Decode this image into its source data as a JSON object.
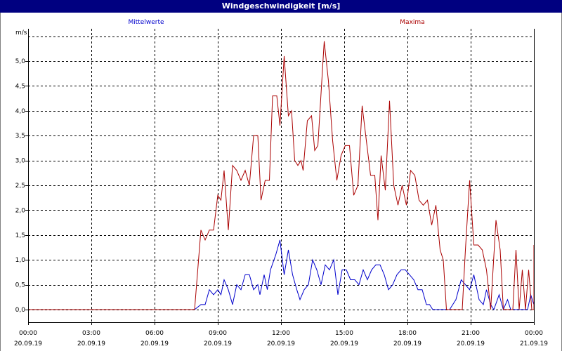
{
  "window": {
    "title": "Windgeschwindigkeit [m/s]"
  },
  "chart_data": {
    "type": "line",
    "title": "Windgeschwindigkeit [m/s]",
    "ylabel": "m/s",
    "xlabel": "",
    "xlim": [
      "2019-09-20 00:00",
      "2019-09-21 00:00"
    ],
    "ylim": [
      -0.25,
      5.5
    ],
    "grid": true,
    "colors": {
      "mittelwerte": "#0000cc",
      "maxima": "#aa0000"
    },
    "y_ticks": [
      {
        "value": 0,
        "label": "0,0"
      },
      {
        "value": 0.5,
        "label": "0,5"
      },
      {
        "value": 1,
        "label": "1,0"
      },
      {
        "value": 1.5,
        "label": "1,5"
      },
      {
        "value": 2,
        "label": "2,0"
      },
      {
        "value": 2.5,
        "label": "2,5"
      },
      {
        "value": 3,
        "label": "3,0"
      },
      {
        "value": 3.5,
        "label": "3,5"
      },
      {
        "value": 4,
        "label": "4,0"
      },
      {
        "value": 4.5,
        "label": "4,5"
      },
      {
        "value": 5,
        "label": "5,0"
      }
    ],
    "x_ticks": [
      {
        "hour": 0,
        "time": "00:00",
        "date": "20.09.19"
      },
      {
        "hour": 3,
        "time": "03:00",
        "date": "20.09.19"
      },
      {
        "hour": 6,
        "time": "06:00",
        "date": "20.09.19"
      },
      {
        "hour": 9,
        "time": "09:00",
        "date": "20.09.19"
      },
      {
        "hour": 12,
        "time": "12:00",
        "date": "20.09.19"
      },
      {
        "hour": 15,
        "time": "15:00",
        "date": "20.09.19"
      },
      {
        "hour": 18,
        "time": "18:00",
        "date": "20.09.19"
      },
      {
        "hour": 21,
        "time": "21:00",
        "date": "20.09.19"
      },
      {
        "hour": 24,
        "time": "00:00",
        "date": "21.09.19"
      }
    ],
    "series": [
      {
        "name": "Mittelwerte",
        "points": [
          [
            0,
            0
          ],
          [
            7.9,
            0
          ],
          [
            8.2,
            0.1
          ],
          [
            8.4,
            0.1
          ],
          [
            8.6,
            0.4
          ],
          [
            8.8,
            0.3
          ],
          [
            9.0,
            0.4
          ],
          [
            9.15,
            0.3
          ],
          [
            9.3,
            0.6
          ],
          [
            9.5,
            0.4
          ],
          [
            9.7,
            0.1
          ],
          [
            9.9,
            0.5
          ],
          [
            10.1,
            0.4
          ],
          [
            10.3,
            0.7
          ],
          [
            10.5,
            0.7
          ],
          [
            10.7,
            0.4
          ],
          [
            10.9,
            0.5
          ],
          [
            11.0,
            0.3
          ],
          [
            11.2,
            0.7
          ],
          [
            11.35,
            0.4
          ],
          [
            11.5,
            0.8
          ],
          [
            11.75,
            1.1
          ],
          [
            11.95,
            1.4
          ],
          [
            12.15,
            0.7
          ],
          [
            12.35,
            1.2
          ],
          [
            12.55,
            0.7
          ],
          [
            12.75,
            0.4
          ],
          [
            12.9,
            0.2
          ],
          [
            13.1,
            0.4
          ],
          [
            13.3,
            0.5
          ],
          [
            13.5,
            1.0
          ],
          [
            13.7,
            0.8
          ],
          [
            13.9,
            0.5
          ],
          [
            14.1,
            0.9
          ],
          [
            14.3,
            0.8
          ],
          [
            14.5,
            1.0
          ],
          [
            14.7,
            0.3
          ],
          [
            14.9,
            0.8
          ],
          [
            15.1,
            0.8
          ],
          [
            15.3,
            0.6
          ],
          [
            15.5,
            0.6
          ],
          [
            15.7,
            0.5
          ],
          [
            15.9,
            0.8
          ],
          [
            16.1,
            0.6
          ],
          [
            16.3,
            0.8
          ],
          [
            16.5,
            0.9
          ],
          [
            16.7,
            0.9
          ],
          [
            16.9,
            0.7
          ],
          [
            17.1,
            0.4
          ],
          [
            17.3,
            0.5
          ],
          [
            17.5,
            0.7
          ],
          [
            17.7,
            0.8
          ],
          [
            17.9,
            0.8
          ],
          [
            18.1,
            0.7
          ],
          [
            18.3,
            0.6
          ],
          [
            18.5,
            0.4
          ],
          [
            18.7,
            0.4
          ],
          [
            18.9,
            0.1
          ],
          [
            19.05,
            0.1
          ],
          [
            19.2,
            0
          ],
          [
            20.0,
            0
          ],
          [
            20.3,
            0.2
          ],
          [
            20.55,
            0.6
          ],
          [
            20.75,
            0.5
          ],
          [
            20.95,
            0.4
          ],
          [
            21.15,
            0.7
          ],
          [
            21.4,
            0.2
          ],
          [
            21.6,
            0.1
          ],
          [
            21.75,
            0.4
          ],
          [
            21.95,
            0.1
          ],
          [
            22.1,
            0
          ],
          [
            22.35,
            0.3
          ],
          [
            22.55,
            0
          ],
          [
            22.75,
            0.2
          ],
          [
            22.9,
            0
          ],
          [
            23.2,
            0
          ],
          [
            23.5,
            0
          ],
          [
            23.7,
            0
          ],
          [
            23.85,
            0.3
          ],
          [
            24.0,
            0.1
          ]
        ]
      },
      {
        "name": "Maxima",
        "points": [
          [
            0,
            0
          ],
          [
            7.9,
            0
          ],
          [
            8.2,
            1.6
          ],
          [
            8.4,
            1.4
          ],
          [
            8.6,
            1.6
          ],
          [
            8.8,
            1.6
          ],
          [
            9.0,
            2.3
          ],
          [
            9.15,
            2.2
          ],
          [
            9.3,
            2.8
          ],
          [
            9.5,
            1.6
          ],
          [
            9.7,
            2.9
          ],
          [
            9.9,
            2.8
          ],
          [
            10.1,
            2.6
          ],
          [
            10.3,
            2.8
          ],
          [
            10.5,
            2.5
          ],
          [
            10.7,
            3.5
          ],
          [
            10.9,
            3.5
          ],
          [
            11.05,
            2.2
          ],
          [
            11.25,
            2.6
          ],
          [
            11.45,
            2.6
          ],
          [
            11.6,
            4.3
          ],
          [
            11.8,
            4.3
          ],
          [
            11.95,
            3.7
          ],
          [
            12.15,
            5.1
          ],
          [
            12.35,
            3.9
          ],
          [
            12.5,
            4.0
          ],
          [
            12.65,
            3.0
          ],
          [
            12.8,
            2.9
          ],
          [
            12.95,
            3.0
          ],
          [
            13.05,
            2.8
          ],
          [
            13.25,
            3.8
          ],
          [
            13.45,
            3.9
          ],
          [
            13.6,
            3.2
          ],
          [
            13.75,
            3.3
          ],
          [
            14.05,
            5.4
          ],
          [
            14.25,
            4.6
          ],
          [
            14.45,
            3.4
          ],
          [
            14.65,
            2.6
          ],
          [
            14.85,
            3.1
          ],
          [
            15.05,
            3.3
          ],
          [
            15.25,
            3.3
          ],
          [
            15.45,
            2.3
          ],
          [
            15.65,
            2.5
          ],
          [
            15.85,
            4.1
          ],
          [
            16.05,
            3.4
          ],
          [
            16.25,
            2.7
          ],
          [
            16.45,
            2.7
          ],
          [
            16.6,
            1.8
          ],
          [
            16.75,
            3.1
          ],
          [
            16.95,
            2.4
          ],
          [
            17.15,
            4.2
          ],
          [
            17.35,
            2.5
          ],
          [
            17.55,
            2.1
          ],
          [
            17.75,
            2.5
          ],
          [
            17.95,
            2.1
          ],
          [
            18.15,
            2.8
          ],
          [
            18.35,
            2.7
          ],
          [
            18.55,
            2.2
          ],
          [
            18.75,
            2.1
          ],
          [
            18.95,
            2.2
          ],
          [
            19.15,
            1.7
          ],
          [
            19.35,
            2.1
          ],
          [
            19.55,
            1.2
          ],
          [
            19.7,
            1.0
          ],
          [
            19.85,
            0
          ],
          [
            20.6,
            0
          ],
          [
            20.75,
            1.2
          ],
          [
            20.95,
            2.6
          ],
          [
            21.15,
            1.3
          ],
          [
            21.35,
            1.3
          ],
          [
            21.55,
            1.2
          ],
          [
            21.75,
            0.8
          ],
          [
            21.95,
            0
          ],
          [
            22.2,
            1.8
          ],
          [
            22.4,
            1.2
          ],
          [
            22.55,
            0
          ],
          [
            23.0,
            0
          ],
          [
            23.15,
            1.2
          ],
          [
            23.3,
            0
          ],
          [
            23.45,
            0.8
          ],
          [
            23.6,
            0
          ],
          [
            23.75,
            0.8
          ],
          [
            23.9,
            0
          ],
          [
            24.05,
            0
          ],
          [
            24.35,
            0
          ],
          [
            24.55,
            1.3
          ],
          [
            24.65,
            1.0
          ],
          [
            24.75,
            0.8
          ]
        ]
      }
    ]
  }
}
